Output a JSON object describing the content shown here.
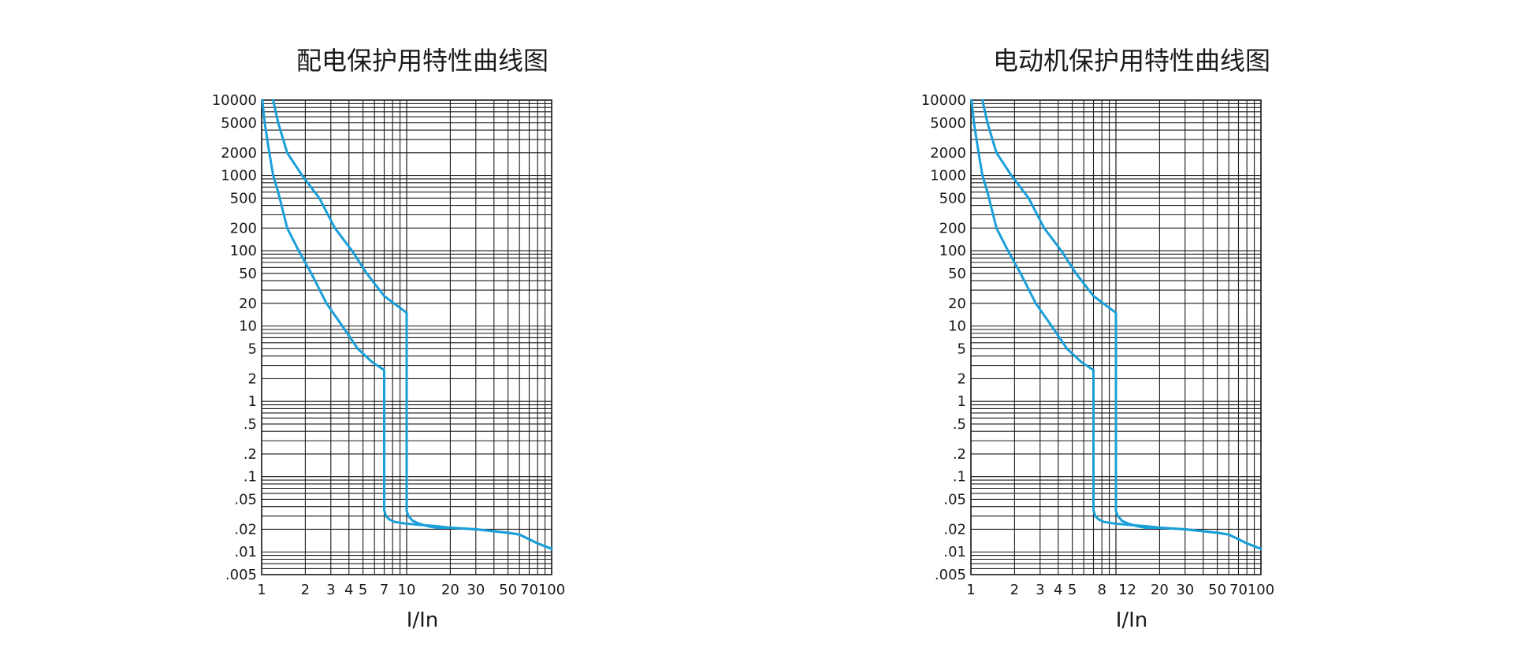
{
  "colors": {
    "curve": "#1a9fd8",
    "grid": "#1a1a1a",
    "text": "#1a1a1a",
    "background": "#ffffff"
  },
  "chart_data": [
    {
      "type": "line",
      "title": "配电保护用特性曲线图",
      "xlabel": "I/In",
      "ylabel": "",
      "xscale": "log",
      "yscale": "log",
      "xlim": [
        1,
        100
      ],
      "ylim": [
        0.005,
        10000
      ],
      "grid": true,
      "x_ticks": [
        1,
        2,
        3,
        4,
        5,
        7,
        10,
        20,
        30,
        50,
        70,
        100
      ],
      "x_tick_labels": [
        "1",
        "2",
        "3",
        "4",
        "5",
        "7",
        "10",
        "20",
        "30",
        "50",
        "70",
        "100"
      ],
      "y_ticks": [
        10000,
        5000,
        2000,
        1000,
        500,
        200,
        100,
        50,
        20,
        10,
        5,
        2,
        1,
        0.5,
        0.2,
        0.1,
        0.05,
        0.02,
        0.01,
        0.005
      ],
      "y_tick_labels": [
        "10000",
        "5000",
        "2000",
        "1000",
        "500",
        "200",
        "100",
        "50",
        "20",
        "10",
        "5",
        "2",
        "1",
        ".5",
        ".2",
        ".1",
        ".05",
        ".02",
        ".01",
        ".005"
      ],
      "series": [
        {
          "x": [
            1.01,
            1.05,
            1.12,
            1.2,
            1.3,
            1.5,
            1.8,
            2.2,
            2.8,
            3.6,
            4.6,
            5.8,
            7.0,
            7.0,
            7.0,
            7.2,
            7.6,
            8.3,
            9.5,
            12,
            16,
            20,
            30,
            50,
            60,
            80,
            100
          ],
          "y": [
            10000,
            5000,
            2200,
            1000,
            600,
            200,
            100,
            50,
            20,
            10,
            5,
            3.3,
            2.6,
            0.2,
            0.036,
            0.03,
            0.027,
            0.025,
            0.024,
            0.023,
            0.022,
            0.021,
            0.02,
            0.018,
            0.017,
            0.013,
            0.011
          ]
        },
        {
          "x": [
            1.2,
            1.3,
            1.5,
            1.9,
            2.5,
            3.2,
            4.2,
            5.3,
            7.0,
            10,
            10,
            10,
            10.3,
            11,
            12,
            14,
            16,
            20,
            30,
            50,
            60,
            80,
            100
          ],
          "y": [
            10000,
            5000,
            2000,
            1000,
            500,
            200,
            100,
            50,
            25,
            15,
            1.6,
            0.035,
            0.03,
            0.026,
            0.024,
            0.022,
            0.021,
            0.021,
            0.02,
            0.018,
            0.017,
            0.013,
            0.011
          ]
        }
      ]
    },
    {
      "type": "line",
      "title": "电动机保护用特性曲线图",
      "xlabel": "I/In",
      "ylabel": "",
      "xscale": "log",
      "yscale": "log",
      "xlim": [
        1,
        100
      ],
      "ylim": [
        0.005,
        10000
      ],
      "grid": true,
      "x_ticks": [
        1,
        2,
        3,
        4,
        5,
        8,
        12,
        20,
        30,
        50,
        70,
        100
      ],
      "x_tick_labels": [
        "1",
        "2",
        "3",
        "4",
        "5",
        "8",
        "12",
        "20",
        "30",
        "50",
        "70",
        "100"
      ],
      "y_ticks": [
        10000,
        5000,
        2000,
        1000,
        500,
        200,
        100,
        50,
        20,
        10,
        5,
        2,
        1,
        0.5,
        0.2,
        0.1,
        0.05,
        0.02,
        0.01,
        0.005
      ],
      "y_tick_labels": [
        "10000",
        "5000",
        "2000",
        "1000",
        "500",
        "200",
        "100",
        "50",
        "20",
        "10",
        "5",
        "2",
        "1",
        ".5",
        ".2",
        ".1",
        ".05",
        ".02",
        ".01",
        ".005"
      ],
      "series": [
        {
          "x": [
            1.01,
            1.05,
            1.12,
            1.2,
            1.3,
            1.5,
            1.8,
            2.2,
            2.8,
            3.6,
            4.6,
            5.8,
            7.0,
            7.0,
            7.0,
            7.2,
            7.6,
            8.3,
            9.5,
            12,
            16,
            20,
            30,
            50,
            60,
            80,
            100
          ],
          "y": [
            10000,
            5000,
            2200,
            1000,
            600,
            200,
            100,
            50,
            20,
            10,
            5,
            3.3,
            2.6,
            0.2,
            0.036,
            0.03,
            0.027,
            0.025,
            0.024,
            0.023,
            0.022,
            0.021,
            0.02,
            0.018,
            0.017,
            0.013,
            0.011
          ]
        },
        {
          "x": [
            1.2,
            1.3,
            1.5,
            1.9,
            2.5,
            3.2,
            4.2,
            5.3,
            7.0,
            10,
            10,
            10,
            10.3,
            11,
            12,
            14,
            16,
            20,
            30,
            50,
            60,
            80,
            100
          ],
          "y": [
            10000,
            5000,
            2000,
            1000,
            500,
            200,
            100,
            50,
            25,
            15,
            1.6,
            0.035,
            0.03,
            0.026,
            0.024,
            0.022,
            0.021,
            0.021,
            0.02,
            0.018,
            0.017,
            0.013,
            0.011
          ]
        }
      ]
    }
  ]
}
